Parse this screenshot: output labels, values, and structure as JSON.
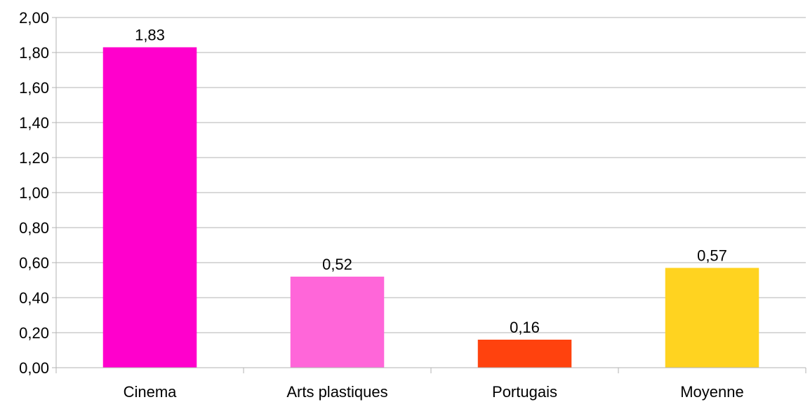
{
  "chart_data": {
    "type": "bar",
    "categories": [
      "Cinema",
      "Arts plastiques",
      "Portugais",
      "Moyenne"
    ],
    "values": [
      1.83,
      0.52,
      0.16,
      0.57
    ],
    "value_labels": [
      "1,83",
      "0,52",
      "0,16",
      "0,57"
    ],
    "colors": [
      "#ff00cc",
      "#ff66d9",
      "#ff420e",
      "#ffd320"
    ],
    "ylim": [
      0,
      2
    ],
    "yticks": [
      0,
      0.2,
      0.4,
      0.6,
      0.8,
      1.0,
      1.2,
      1.4,
      1.6,
      1.8,
      2.0
    ],
    "ytick_labels": [
      "0,00",
      "0,20",
      "0,40",
      "0,60",
      "0,80",
      "1,00",
      "1,20",
      "1,40",
      "1,60",
      "1,80",
      "2,00"
    ],
    "grid": true,
    "legend": "none",
    "title": "",
    "xlabel": "",
    "ylabel": ""
  }
}
